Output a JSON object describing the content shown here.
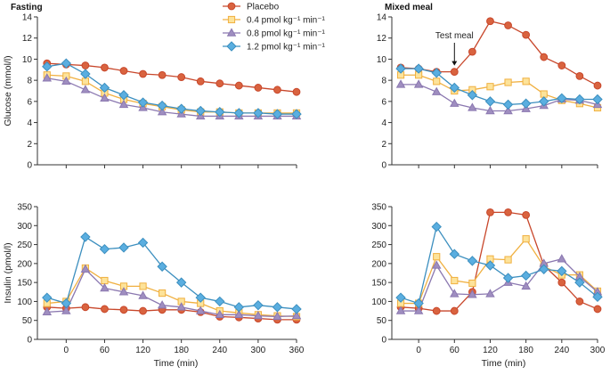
{
  "chart_data": [
    {
      "id": "glucose-fasting",
      "type": "line",
      "title": "Fasting",
      "xlabel": "",
      "ylabel": "Glucose (mmol/l)",
      "xlim": [
        -45,
        360
      ],
      "ylim": [
        0,
        14
      ],
      "xticks": [
        0,
        60,
        120,
        180,
        240,
        300,
        360
      ],
      "xtick_labels": [],
      "yticks": [
        0,
        2,
        4,
        6,
        8,
        10,
        12,
        14
      ],
      "x": [
        -30,
        0,
        30,
        60,
        90,
        120,
        150,
        180,
        210,
        240,
        270,
        300,
        330,
        360
      ],
      "series": [
        {
          "name": "Placebo",
          "values": [
            9.6,
            9.5,
            9.4,
            9.2,
            8.9,
            8.6,
            8.5,
            8.3,
            7.9,
            7.7,
            7.5,
            7.3,
            7.1,
            6.9
          ]
        },
        {
          "name": "0.4 pmol kg⁻¹ min⁻¹",
          "values": [
            8.5,
            8.4,
            7.9,
            6.8,
            6.2,
            5.8,
            5.5,
            5.2,
            5.0,
            5.0,
            4.9,
            4.9,
            4.9,
            4.9
          ]
        },
        {
          "name": "0.8 pmol kg⁻¹ min⁻¹",
          "values": [
            8.2,
            7.9,
            7.1,
            6.3,
            5.7,
            5.4,
            5.0,
            4.8,
            4.6,
            4.6,
            4.6,
            4.6,
            4.6,
            4.6
          ]
        },
        {
          "name": "1.2 pmol kg⁻¹ min⁻¹",
          "values": [
            9.3,
            9.6,
            8.6,
            7.3,
            6.6,
            5.9,
            5.6,
            5.3,
            5.1,
            5.0,
            4.9,
            4.9,
            4.8,
            4.8
          ]
        }
      ]
    },
    {
      "id": "glucose-mixed",
      "type": "line",
      "title": "Mixed meal",
      "xlabel": "",
      "ylabel": "",
      "xlim": [
        -45,
        300
      ],
      "ylim": [
        0,
        14
      ],
      "xticks": [
        0,
        60,
        120,
        180,
        240,
        300
      ],
      "xtick_labels": [],
      "yticks": [
        0,
        2,
        4,
        6,
        8,
        10,
        12,
        14
      ],
      "x": [
        -30,
        0,
        30,
        60,
        90,
        120,
        150,
        180,
        210,
        240,
        270,
        300
      ],
      "series": [
        {
          "name": "Placebo",
          "values": [
            9.2,
            9.1,
            8.8,
            8.8,
            10.7,
            13.6,
            13.2,
            12.3,
            10.2,
            9.4,
            8.4,
            7.5
          ]
        },
        {
          "name": "0.4 pmol kg⁻¹ min⁻¹",
          "values": [
            8.5,
            8.5,
            7.9,
            7.0,
            7.1,
            7.4,
            7.8,
            7.9,
            6.7,
            6.1,
            5.8,
            5.4
          ]
        },
        {
          "name": "0.8 pmol kg⁻¹ min⁻¹",
          "values": [
            7.6,
            7.6,
            6.9,
            5.8,
            5.4,
            5.1,
            5.1,
            5.3,
            5.6,
            6.2,
            6.1,
            5.7
          ]
        },
        {
          "name": "1.2 pmol kg⁻¹ min⁻¹",
          "values": [
            9.1,
            9.1,
            8.7,
            7.3,
            6.6,
            6.0,
            5.7,
            5.8,
            6.0,
            6.3,
            6.2,
            6.2
          ]
        }
      ],
      "annotation": {
        "text": "Test meal",
        "x": 60
      }
    },
    {
      "id": "insulin-fasting",
      "type": "line",
      "title": "",
      "xlabel": "Time (min)",
      "ylabel": "Insulin (pmol/l)",
      "xlim": [
        -45,
        360
      ],
      "ylim": [
        0,
        350
      ],
      "xticks": [
        0,
        60,
        120,
        180,
        240,
        300,
        360
      ],
      "xtick_labels": [
        "0",
        "60",
        "120",
        "180",
        "240",
        "300",
        "360"
      ],
      "yticks": [
        0,
        50,
        100,
        150,
        200,
        250,
        300,
        350
      ],
      "x": [
        -30,
        0,
        30,
        60,
        90,
        120,
        150,
        180,
        210,
        240,
        270,
        300,
        330,
        360
      ],
      "series": [
        {
          "name": "Placebo",
          "values": [
            85,
            82,
            85,
            80,
            78,
            75,
            78,
            78,
            72,
            60,
            58,
            55,
            52,
            52
          ]
        },
        {
          "name": "0.4 pmol kg⁻¹ min⁻¹",
          "values": [
            95,
            100,
            188,
            155,
            140,
            140,
            122,
            100,
            95,
            75,
            70,
            65,
            62,
            60
          ]
        },
        {
          "name": "0.8 pmol kg⁻¹ min⁻¹",
          "values": [
            72,
            75,
            185,
            135,
            125,
            115,
            90,
            85,
            75,
            65,
            65,
            62,
            60,
            62
          ]
        },
        {
          "name": "1.2 pmol kg⁻¹ min⁻¹",
          "values": [
            110,
            95,
            270,
            238,
            242,
            255,
            192,
            150,
            110,
            100,
            85,
            90,
            85,
            80
          ]
        }
      ]
    },
    {
      "id": "insulin-mixed",
      "type": "line",
      "title": "",
      "xlabel": "Time (min)",
      "ylabel": "",
      "xlim": [
        -45,
        300
      ],
      "ylim": [
        0,
        350
      ],
      "xticks": [
        0,
        60,
        120,
        180,
        240,
        300
      ],
      "xtick_labels": [
        "0",
        "60",
        "120",
        "180",
        "240",
        "300"
      ],
      "yticks": [
        0,
        50,
        100,
        150,
        200,
        250,
        300,
        350
      ],
      "x": [
        -30,
        0,
        30,
        60,
        90,
        120,
        150,
        180,
        210,
        240,
        270,
        300
      ],
      "series": [
        {
          "name": "Placebo",
          "values": [
            85,
            82,
            75,
            75,
            125,
            335,
            335,
            328,
            195,
            150,
            100,
            80
          ]
        },
        {
          "name": "0.4 pmol kg⁻¹ min⁻¹",
          "values": [
            95,
            95,
            218,
            155,
            148,
            212,
            210,
            265,
            192,
            170,
            170,
            127
          ]
        },
        {
          "name": "0.8 pmol kg⁻¹ min⁻¹",
          "values": [
            75,
            75,
            195,
            120,
            118,
            120,
            150,
            140,
            200,
            212,
            165,
            125
          ]
        },
        {
          "name": "1.2 pmol kg⁻¹ min⁻¹",
          "values": [
            110,
            95,
            297,
            225,
            207,
            195,
            162,
            168,
            185,
            180,
            150,
            112
          ]
        }
      ]
    }
  ],
  "legend": {
    "placement": "top-center",
    "items": [
      {
        "label": "Placebo"
      },
      {
        "label": "0.4 pmol kg⁻¹ min⁻¹"
      },
      {
        "label": "0.8 pmol kg⁻¹ min⁻¹"
      },
      {
        "label": "1.2 pmol kg⁻¹ min⁻¹"
      }
    ]
  },
  "styles": {
    "series_colors": [
      "#c8472b",
      "#f0b040",
      "#8b78b0",
      "#3c8fbf"
    ],
    "series_fills": [
      "#d9633f",
      "#fde39a",
      "#9f8ec0",
      "#5aaee0"
    ],
    "series_markers": [
      "circle",
      "square",
      "triangle",
      "diamond"
    ],
    "axis_color": "#333333"
  }
}
